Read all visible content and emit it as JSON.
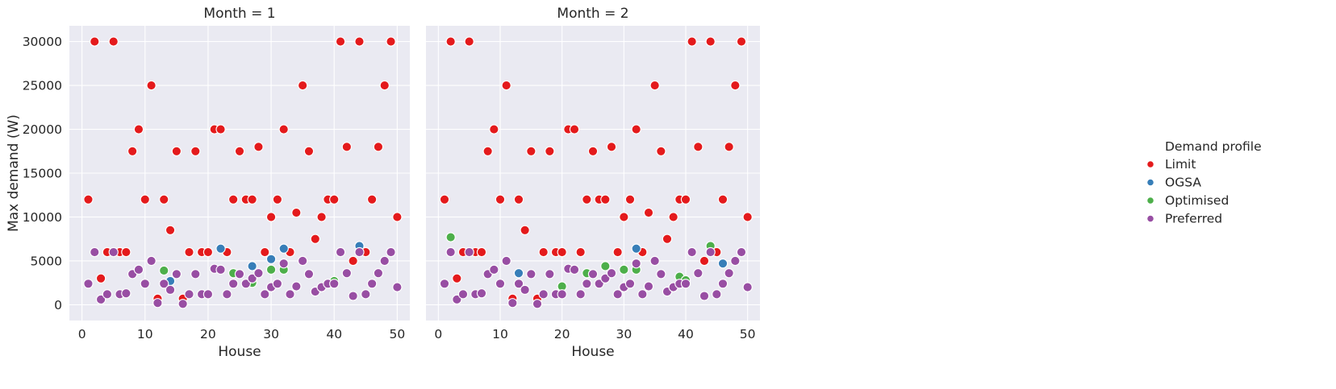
{
  "chart_data": {
    "type": "scatter",
    "ylabel": "Max demand (W)",
    "xlabel": "House",
    "legend": {
      "title": "Demand profile",
      "placement": "right",
      "entries": [
        "Limit",
        "OGSA",
        "Optimised",
        "Preferred"
      ]
    },
    "colors": {
      "Limit": "#e41a1c",
      "OGSA": "#377eb8",
      "Optimised": "#4daf4a",
      "Preferred": "#984ea3"
    },
    "xlim": [
      -2,
      52
    ],
    "ylim": [
      -1800,
      31800
    ],
    "xticks": [
      0,
      10,
      20,
      30,
      40,
      50
    ],
    "yticks": [
      0,
      5000,
      10000,
      15000,
      20000,
      25000,
      30000
    ],
    "grid": true,
    "panels": [
      {
        "title": "Month = 1",
        "series": [
          {
            "name": "Limit",
            "points": [
              [
                1,
                12000
              ],
              [
                2,
                30000
              ],
              [
                3,
                3000
              ],
              [
                4,
                6000
              ],
              [
                5,
                30000
              ],
              [
                6,
                6000
              ],
              [
                7,
                6000
              ],
              [
                8,
                17500
              ],
              [
                9,
                20000
              ],
              [
                10,
                12000
              ],
              [
                11,
                25000
              ],
              [
                12,
                700
              ],
              [
                13,
                12000
              ],
              [
                14,
                8500
              ],
              [
                15,
                17500
              ],
              [
                16,
                700
              ],
              [
                17,
                6000
              ],
              [
                18,
                17500
              ],
              [
                19,
                6000
              ],
              [
                20,
                6000
              ],
              [
                21,
                20000
              ],
              [
                22,
                20000
              ],
              [
                23,
                6000
              ],
              [
                24,
                12000
              ],
              [
                25,
                17500
              ],
              [
                26,
                12000
              ],
              [
                27,
                12000
              ],
              [
                28,
                18000
              ],
              [
                29,
                6000
              ],
              [
                30,
                10000
              ],
              [
                31,
                12000
              ],
              [
                32,
                20000
              ],
              [
                33,
                6000
              ],
              [
                34,
                10500
              ],
              [
                35,
                25000
              ],
              [
                36,
                17500
              ],
              [
                37,
                7500
              ],
              [
                38,
                10000
              ],
              [
                39,
                12000
              ],
              [
                40,
                12000
              ],
              [
                41,
                30000
              ],
              [
                42,
                18000
              ],
              [
                43,
                5000
              ],
              [
                44,
                30000
              ],
              [
                45,
                6000
              ],
              [
                46,
                12000
              ],
              [
                47,
                18000
              ],
              [
                48,
                25000
              ],
              [
                49,
                30000
              ],
              [
                50,
                10000
              ]
            ]
          },
          {
            "name": "OGSA",
            "points": [
              [
                14,
                2700
              ],
              [
                22,
                6400
              ],
              [
                27,
                4400
              ],
              [
                30,
                5200
              ],
              [
                32,
                6400
              ],
              [
                44,
                6700
              ]
            ]
          },
          {
            "name": "Optimised",
            "points": [
              [
                13,
                3900
              ],
              [
                24,
                3600
              ],
              [
                27,
                2500
              ],
              [
                30,
                4000
              ],
              [
                32,
                4000
              ],
              [
                40,
                2700
              ]
            ]
          },
          {
            "name": "Preferred",
            "points": [
              [
                1,
                2400
              ],
              [
                2,
                6000
              ],
              [
                3,
                600
              ],
              [
                4,
                1200
              ],
              [
                5,
                6000
              ],
              [
                6,
                1200
              ],
              [
                7,
                1300
              ],
              [
                8,
                3500
              ],
              [
                9,
                4000
              ],
              [
                10,
                2400
              ],
              [
                11,
                5000
              ],
              [
                12,
                200
              ],
              [
                13,
                2400
              ],
              [
                14,
                1700
              ],
              [
                15,
                3500
              ],
              [
                16,
                100
              ],
              [
                17,
                1200
              ],
              [
                18,
                3500
              ],
              [
                19,
                1200
              ],
              [
                20,
                1200
              ],
              [
                21,
                4100
              ],
              [
                22,
                4000
              ],
              [
                23,
                1200
              ],
              [
                24,
                2400
              ],
              [
                25,
                3500
              ],
              [
                26,
                2400
              ],
              [
                27,
                3000
              ],
              [
                28,
                3600
              ],
              [
                29,
                1200
              ],
              [
                30,
                2000
              ],
              [
                31,
                2400
              ],
              [
                32,
                4700
              ],
              [
                33,
                1200
              ],
              [
                34,
                2100
              ],
              [
                35,
                5000
              ],
              [
                36,
                3500
              ],
              [
                37,
                1500
              ],
              [
                38,
                2000
              ],
              [
                39,
                2400
              ],
              [
                40,
                2400
              ],
              [
                41,
                6000
              ],
              [
                42,
                3600
              ],
              [
                43,
                1000
              ],
              [
                44,
                6000
              ],
              [
                45,
                1200
              ],
              [
                46,
                2400
              ],
              [
                47,
                3600
              ],
              [
                48,
                5000
              ],
              [
                49,
                6000
              ],
              [
                50,
                2000
              ]
            ]
          }
        ]
      },
      {
        "title": "Month = 2",
        "series": [
          {
            "name": "Limit",
            "points": [
              [
                1,
                12000
              ],
              [
                2,
                30000
              ],
              [
                3,
                3000
              ],
              [
                4,
                6000
              ],
              [
                5,
                30000
              ],
              [
                6,
                6000
              ],
              [
                7,
                6000
              ],
              [
                8,
                17500
              ],
              [
                9,
                20000
              ],
              [
                10,
                12000
              ],
              [
                11,
                25000
              ],
              [
                12,
                700
              ],
              [
                13,
                12000
              ],
              [
                14,
                8500
              ],
              [
                15,
                17500
              ],
              [
                16,
                700
              ],
              [
                17,
                6000
              ],
              [
                18,
                17500
              ],
              [
                19,
                6000
              ],
              [
                20,
                6000
              ],
              [
                21,
                20000
              ],
              [
                22,
                20000
              ],
              [
                23,
                6000
              ],
              [
                24,
                12000
              ],
              [
                25,
                17500
              ],
              [
                26,
                12000
              ],
              [
                27,
                12000
              ],
              [
                28,
                18000
              ],
              [
                29,
                6000
              ],
              [
                30,
                10000
              ],
              [
                31,
                12000
              ],
              [
                32,
                20000
              ],
              [
                33,
                6000
              ],
              [
                34,
                10500
              ],
              [
                35,
                25000
              ],
              [
                36,
                17500
              ],
              [
                37,
                7500
              ],
              [
                38,
                10000
              ],
              [
                39,
                12000
              ],
              [
                40,
                12000
              ],
              [
                41,
                30000
              ],
              [
                42,
                18000
              ],
              [
                43,
                5000
              ],
              [
                44,
                30000
              ],
              [
                45,
                6000
              ],
              [
                46,
                12000
              ],
              [
                47,
                18000
              ],
              [
                48,
                25000
              ],
              [
                49,
                30000
              ],
              [
                50,
                10000
              ]
            ]
          },
          {
            "name": "OGSA",
            "points": [
              [
                13,
                3600
              ],
              [
                32,
                6400
              ],
              [
                46,
                4700
              ]
            ]
          },
          {
            "name": "Optimised",
            "points": [
              [
                2,
                7700
              ],
              [
                20,
                2100
              ],
              [
                24,
                3600
              ],
              [
                27,
                4400
              ],
              [
                30,
                4000
              ],
              [
                32,
                4000
              ],
              [
                39,
                3200
              ],
              [
                40,
                2800
              ],
              [
                44,
                6700
              ]
            ]
          },
          {
            "name": "Preferred",
            "points": [
              [
                1,
                2400
              ],
              [
                2,
                6000
              ],
              [
                3,
                600
              ],
              [
                4,
                1200
              ],
              [
                5,
                6000
              ],
              [
                6,
                1200
              ],
              [
                7,
                1300
              ],
              [
                8,
                3500
              ],
              [
                9,
                4000
              ],
              [
                10,
                2400
              ],
              [
                11,
                5000
              ],
              [
                12,
                200
              ],
              [
                13,
                2400
              ],
              [
                14,
                1700
              ],
              [
                15,
                3500
              ],
              [
                16,
                100
              ],
              [
                17,
                1200
              ],
              [
                18,
                3500
              ],
              [
                19,
                1200
              ],
              [
                20,
                1200
              ],
              [
                21,
                4100
              ],
              [
                22,
                4000
              ],
              [
                23,
                1200
              ],
              [
                24,
                2400
              ],
              [
                25,
                3500
              ],
              [
                26,
                2400
              ],
              [
                27,
                3000
              ],
              [
                28,
                3600
              ],
              [
                29,
                1200
              ],
              [
                30,
                2000
              ],
              [
                31,
                2400
              ],
              [
                32,
                4700
              ],
              [
                33,
                1200
              ],
              [
                34,
                2100
              ],
              [
                35,
                5000
              ],
              [
                36,
                3500
              ],
              [
                37,
                1500
              ],
              [
                38,
                2000
              ],
              [
                39,
                2400
              ],
              [
                40,
                2400
              ],
              [
                41,
                6000
              ],
              [
                42,
                3600
              ],
              [
                43,
                1000
              ],
              [
                44,
                6000
              ],
              [
                45,
                1200
              ],
              [
                46,
                2400
              ],
              [
                47,
                3600
              ],
              [
                48,
                5000
              ],
              [
                49,
                6000
              ],
              [
                50,
                2000
              ]
            ]
          }
        ]
      }
    ]
  }
}
